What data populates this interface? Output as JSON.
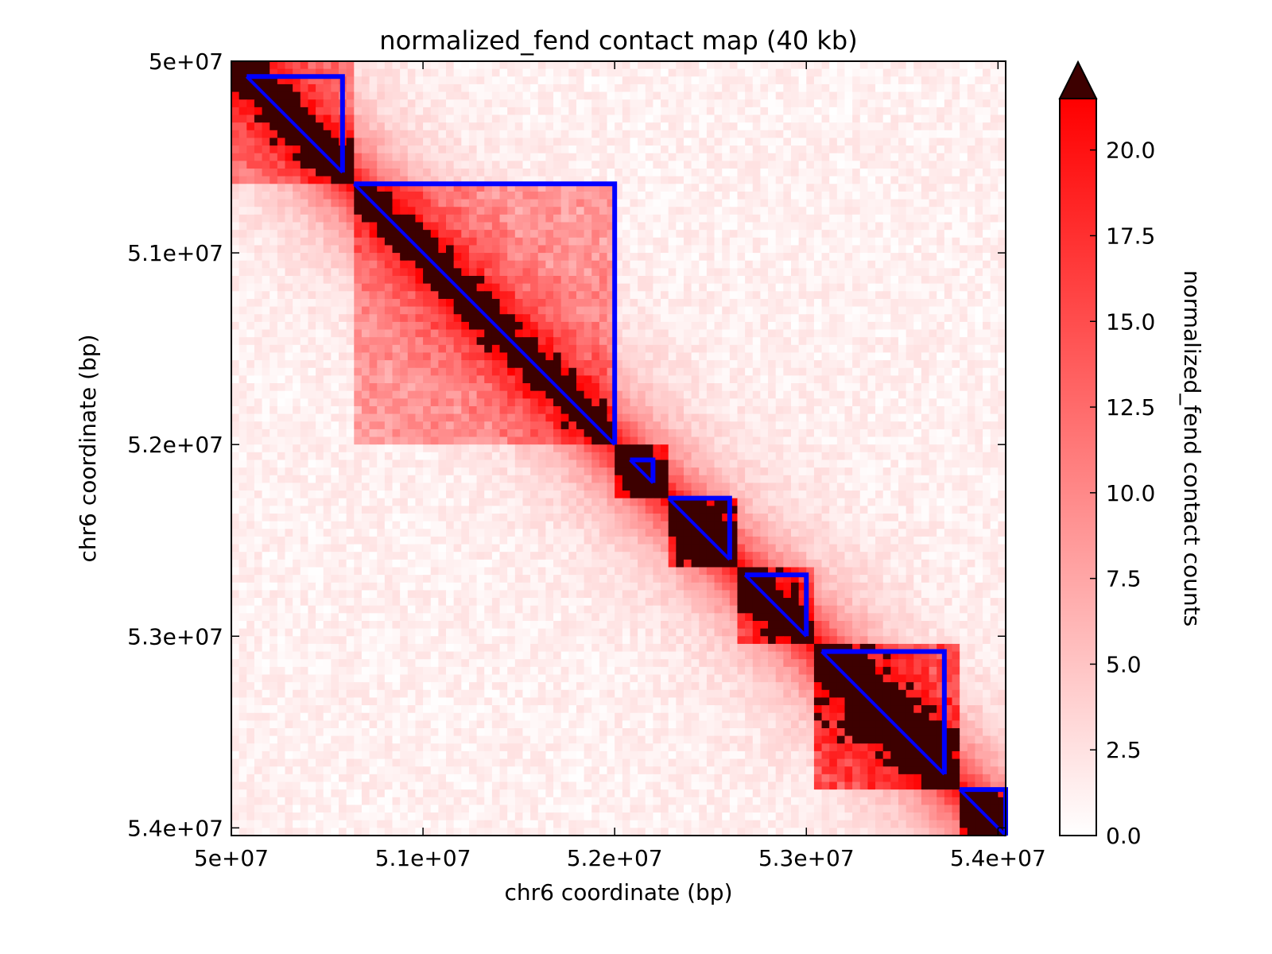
{
  "chart_data": {
    "type": "heatmap",
    "title": "normalized_fend contact map (40 kb)",
    "xlabel": "chr6 coordinate (bp)",
    "ylabel": "chr6 coordinate (bp)",
    "xlim": [
      50000000,
      54040000
    ],
    "ylim": [
      50000000,
      54040000
    ],
    "bin_size": 40000,
    "x_ticks": [
      {
        "value": 50000000,
        "label": "5e+07"
      },
      {
        "value": 51000000,
        "label": "5.1e+07"
      },
      {
        "value": 52000000,
        "label": "5.2e+07"
      },
      {
        "value": 53000000,
        "label": "5.3e+07"
      },
      {
        "value": 54000000,
        "label": "5.4e+07"
      }
    ],
    "y_ticks": [
      {
        "value": 50000000,
        "label": "5e+07"
      },
      {
        "value": 51000000,
        "label": "5.1e+07"
      },
      {
        "value": 52000000,
        "label": "5.2e+07"
      },
      {
        "value": 53000000,
        "label": "5.3e+07"
      },
      {
        "value": 54000000,
        "label": "5.4e+07"
      }
    ],
    "colorbar": {
      "label": "normalized_fend contact counts",
      "min": 0,
      "max": 21.5,
      "extend": "max",
      "colors": [
        "#ffffff",
        "#ff0000"
      ],
      "over_color": "#3d0000",
      "ticks": [
        {
          "value": 0,
          "label": "0.0"
        },
        {
          "value": 2.5,
          "label": "2.5"
        },
        {
          "value": 5,
          "label": "5.0"
        },
        {
          "value": 7.5,
          "label": "7.5"
        },
        {
          "value": 10,
          "label": "10.0"
        },
        {
          "value": 12.5,
          "label": "12.5"
        },
        {
          "value": 15,
          "label": "15.0"
        },
        {
          "value": 17.5,
          "label": "17.5"
        },
        {
          "value": 20,
          "label": "20.0"
        }
      ]
    },
    "domain_color": "#0000ff",
    "domains": [
      {
        "start": 50080000,
        "end": 50580000
      },
      {
        "start": 50640000,
        "end": 52000000
      },
      {
        "start": 52080000,
        "end": 52200000
      },
      {
        "start": 52280000,
        "end": 52600000
      },
      {
        "start": 52680000,
        "end": 53000000
      },
      {
        "start": 53080000,
        "end": 53720000
      },
      {
        "start": 53800000,
        "end": 54040000
      }
    ],
    "features": [
      {
        "start": 50000000,
        "end": 50640000,
        "level": 8
      },
      {
        "start": 50640000,
        "end": 52000000,
        "level": 7
      },
      {
        "start": 52000000,
        "end": 52280000,
        "level": 10
      },
      {
        "start": 52280000,
        "end": 52640000,
        "level": 14
      },
      {
        "start": 52640000,
        "end": 53040000,
        "level": 9
      },
      {
        "start": 53040000,
        "end": 53800000,
        "level": 12
      },
      {
        "start": 53800000,
        "end": 54040000,
        "level": 10
      }
    ]
  }
}
